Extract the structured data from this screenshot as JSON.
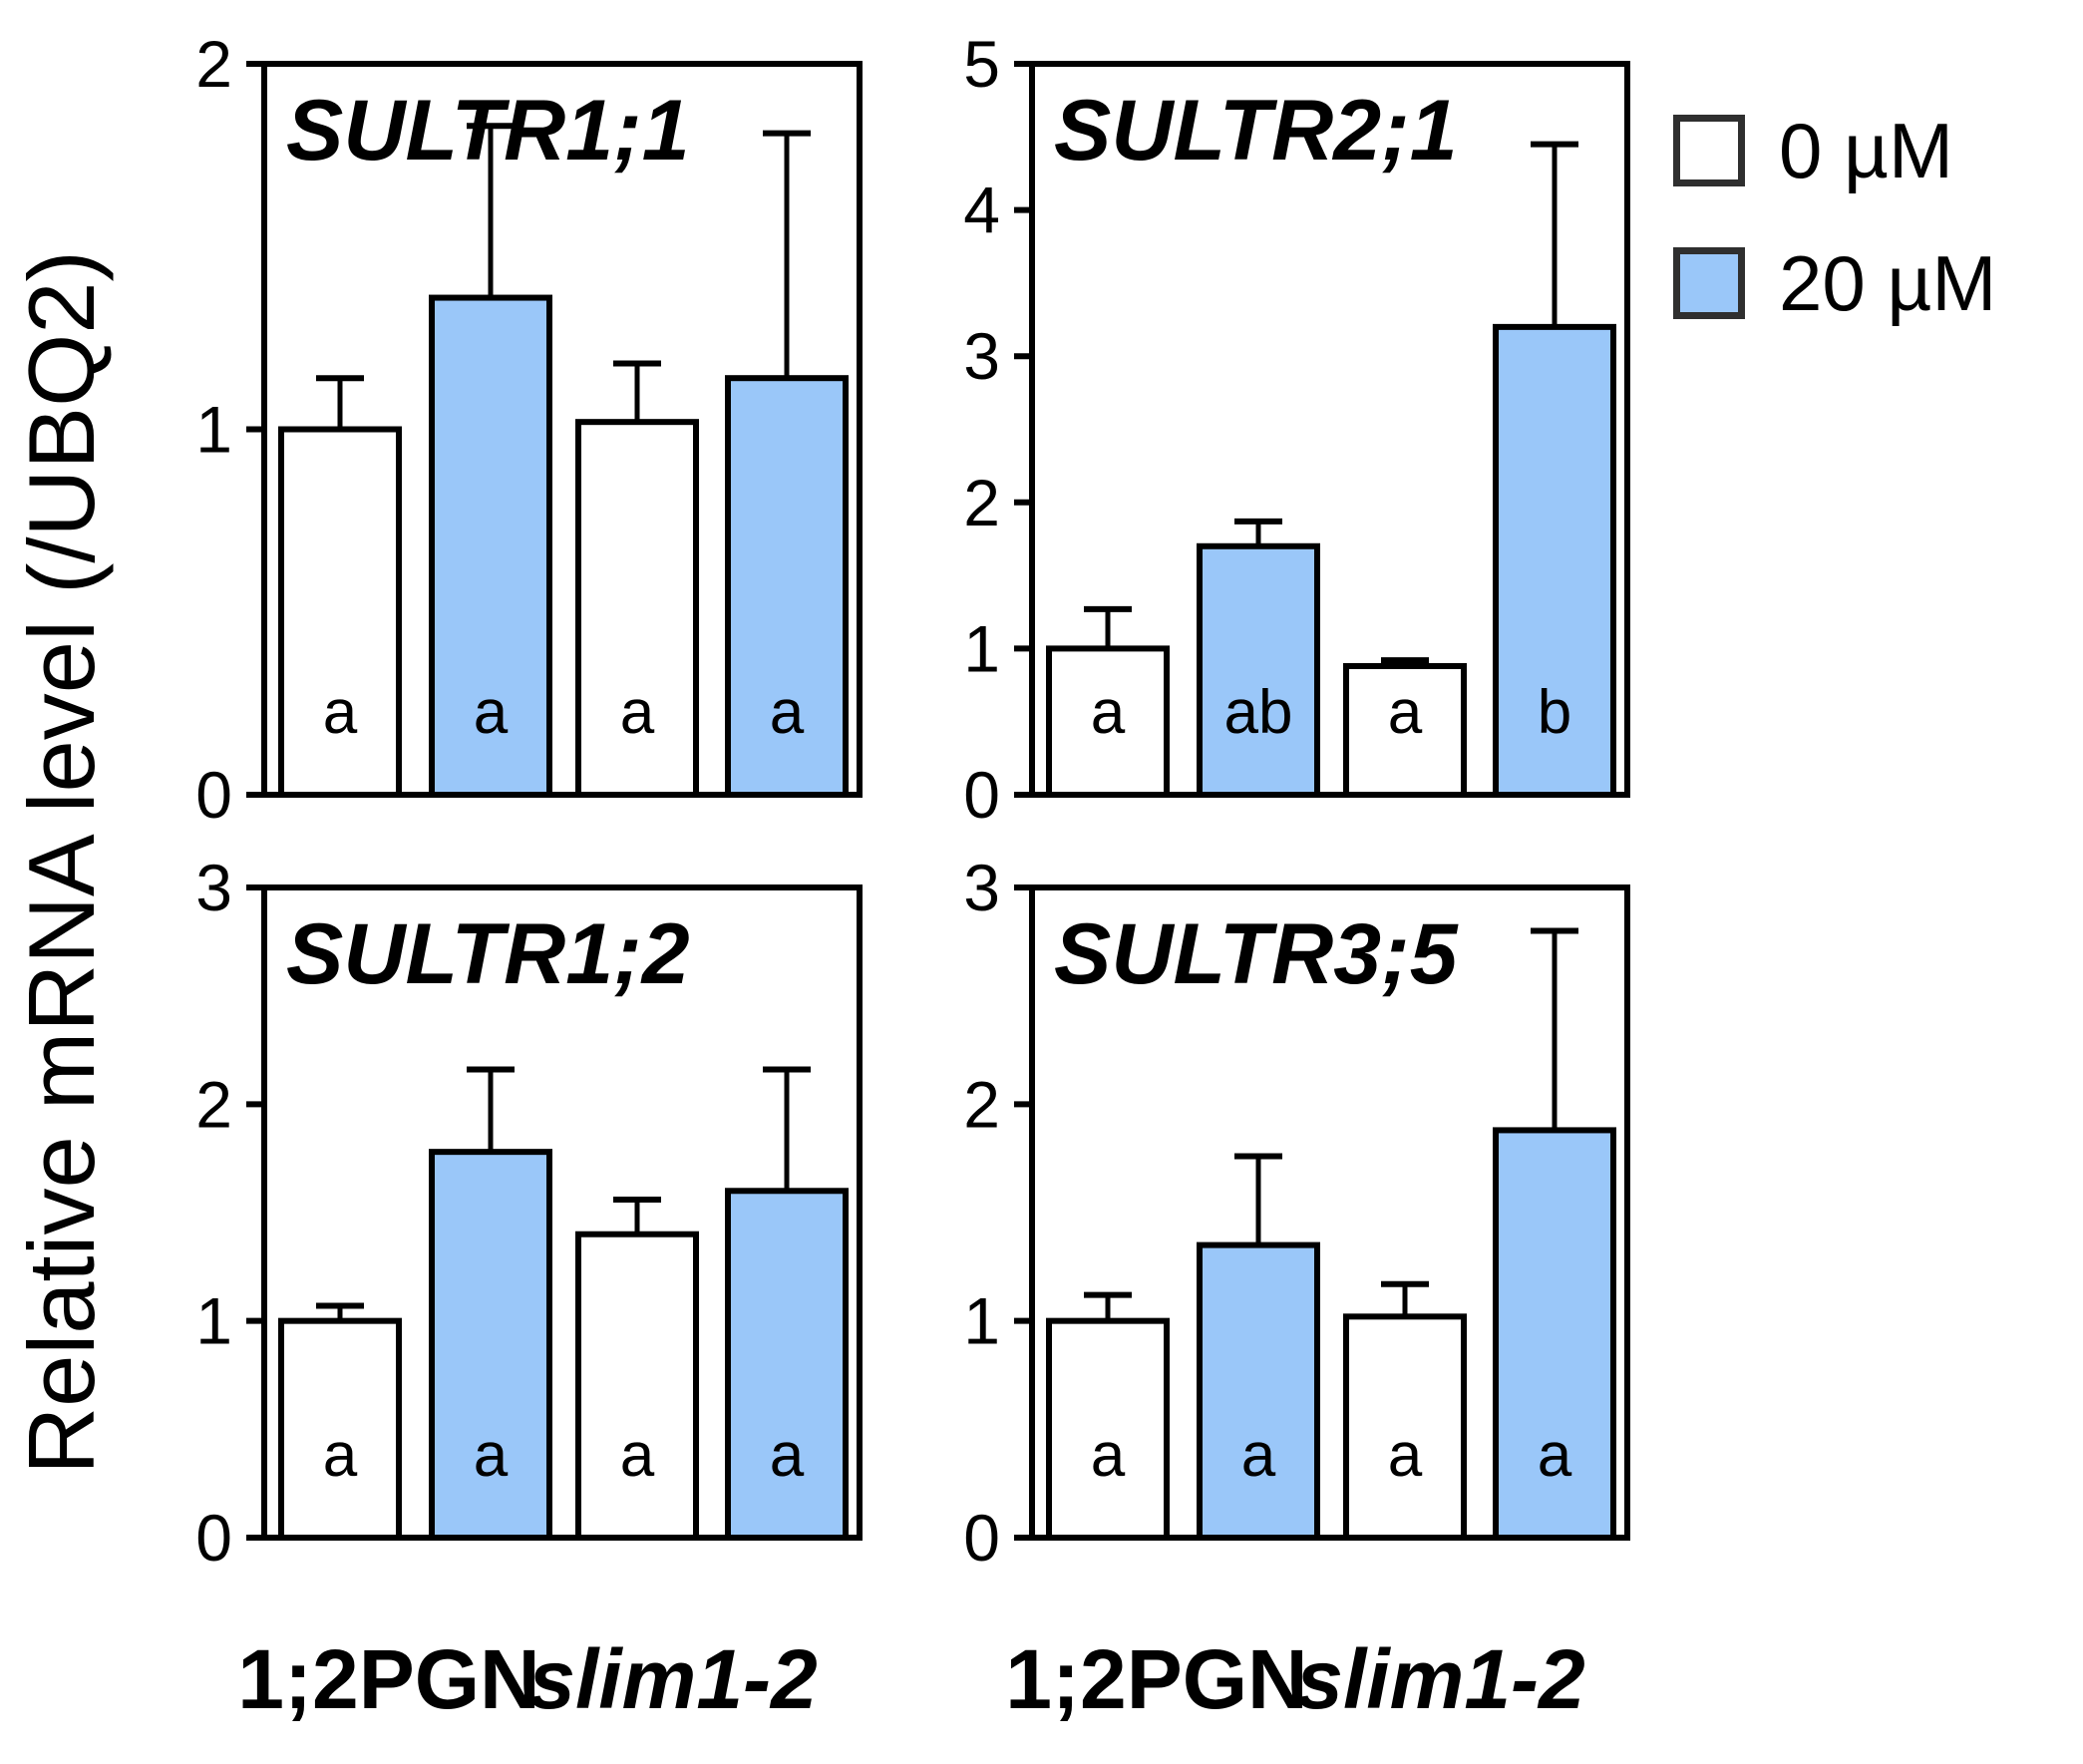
{
  "chart_data": {
    "type": "bar",
    "figure_y_axis_label": "Relative mRNA level (/UBQ2)",
    "categories": [
      "1;2PGN",
      "slim1-2"
    ],
    "grid": false,
    "legend": {
      "position": "top-right",
      "items": [
        {
          "label": "0 µM",
          "color": "#FFFFFF"
        },
        {
          "label": "20 µM",
          "color": "#9AC7F9"
        }
      ]
    },
    "colors": {
      "bar_fill_0uM": "#FFFFFF",
      "bar_fill_20uM": "#9AC7F9",
      "stroke": "#000000"
    },
    "panels": [
      {
        "title": "SULTR1;1",
        "row": 0,
        "col": 0,
        "ylim": [
          0,
          2
        ],
        "yticks": [
          0,
          1,
          2
        ],
        "bars": [
          {
            "category": "1;2PGN",
            "series": "0 µM",
            "value": 1.0,
            "error_top": 1.14,
            "letter": "a"
          },
          {
            "category": "1;2PGN",
            "series": "20 µM",
            "value": 1.36,
            "error_top": 1.83,
            "letter": "a"
          },
          {
            "category": "slim1-2",
            "series": "0 µM",
            "value": 1.02,
            "error_top": 1.18,
            "letter": "a"
          },
          {
            "category": "slim1-2",
            "series": "20 µM",
            "value": 1.14,
            "error_top": 1.81,
            "letter": "a"
          }
        ]
      },
      {
        "title": "SULTR2;1",
        "row": 0,
        "col": 1,
        "ylim": [
          0,
          5
        ],
        "yticks": [
          0,
          1,
          2,
          3,
          4,
          5
        ],
        "bars": [
          {
            "category": "1;2PGN",
            "series": "0 µM",
            "value": 1.0,
            "error_top": 1.27,
            "letter": "a"
          },
          {
            "category": "1;2PGN",
            "series": "20 µM",
            "value": 1.7,
            "error_top": 1.87,
            "letter": "ab"
          },
          {
            "category": "slim1-2",
            "series": "0 µM",
            "value": 0.88,
            "error_top": 0.92,
            "letter": "a"
          },
          {
            "category": "slim1-2",
            "series": "20 µM",
            "value": 3.2,
            "error_top": 4.45,
            "letter": "b"
          }
        ]
      },
      {
        "title": "SULTR1;2",
        "row": 1,
        "col": 0,
        "ylim": [
          0,
          3
        ],
        "yticks": [
          0,
          1,
          2,
          3
        ],
        "bars": [
          {
            "category": "1;2PGN",
            "series": "0 µM",
            "value": 1.0,
            "error_top": 1.07,
            "letter": "a"
          },
          {
            "category": "1;2PGN",
            "series": "20 µM",
            "value": 1.78,
            "error_top": 2.16,
            "letter": "a"
          },
          {
            "category": "slim1-2",
            "series": "0 µM",
            "value": 1.4,
            "error_top": 1.56,
            "letter": "a"
          },
          {
            "category": "slim1-2",
            "series": "20 µM",
            "value": 1.6,
            "error_top": 2.16,
            "letter": "a"
          }
        ]
      },
      {
        "title": "SULTR3;5",
        "row": 1,
        "col": 1,
        "ylim": [
          0,
          3
        ],
        "yticks": [
          0,
          1,
          2,
          3
        ],
        "bars": [
          {
            "category": "1;2PGN",
            "series": "0 µM",
            "value": 1.0,
            "error_top": 1.12,
            "letter": "a"
          },
          {
            "category": "1;2PGN",
            "series": "20 µM",
            "value": 1.35,
            "error_top": 1.76,
            "letter": "a"
          },
          {
            "category": "slim1-2",
            "series": "0 µM",
            "value": 1.02,
            "error_top": 1.17,
            "letter": "a"
          },
          {
            "category": "slim1-2",
            "series": "20 µM",
            "value": 1.88,
            "error_top": 2.8,
            "letter": "a"
          }
        ]
      }
    ]
  }
}
